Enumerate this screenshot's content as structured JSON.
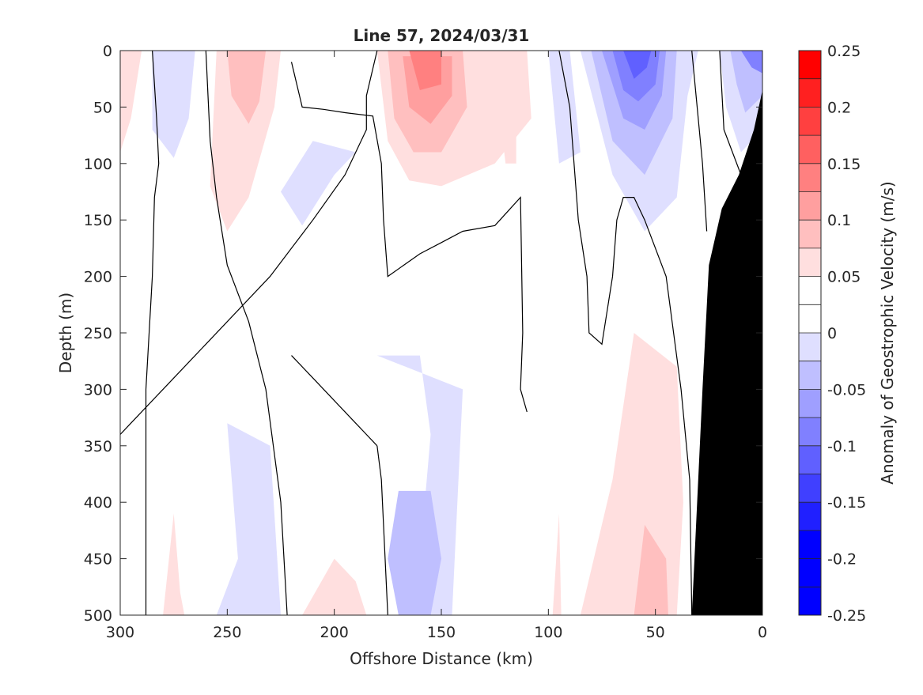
{
  "chart_data": {
    "type": "contourf",
    "title": "Line 57, 2024/03/31",
    "xlabel": "Offshore Distance (km)",
    "ylabel": "Depth (m)",
    "xlim": [
      300,
      0
    ],
    "ylim": [
      0,
      500
    ],
    "x_axis_reversed": true,
    "y_axis_reversed": true,
    "x_ticks": [
      "300",
      "250",
      "200",
      "150",
      "100",
      "50",
      "0"
    ],
    "y_ticks": [
      "0",
      "50",
      "100",
      "150",
      "200",
      "250",
      "300",
      "350",
      "400",
      "450",
      "500"
    ],
    "colorbar": {
      "label": "Anomaly of Geostrophic Velocity (m/s)",
      "range": [
        -0.25,
        0.25
      ],
      "tick_labels": [
        "0.25",
        "0.2",
        "0.15",
        "0.1",
        "0.05",
        "0",
        "-0.05",
        "-0.1",
        "-0.15",
        "-0.2",
        "-0.25"
      ],
      "levels": [
        0.25,
        0.225,
        0.2,
        0.175,
        0.15,
        0.125,
        0.1,
        0.075,
        0.05,
        0.025,
        0.0,
        -0.025,
        -0.05,
        -0.075,
        -0.1,
        -0.125,
        -0.15,
        -0.175,
        -0.2,
        -0.225,
        -0.25
      ],
      "colors": [
        "#ff0000",
        "#ff2020",
        "#ff4040",
        "#ff6060",
        "#ff8080",
        "#ff9f9f",
        "#ffbfbf",
        "#ffdfdf",
        "#ffffff",
        "#ffffff",
        "#dfdfff",
        "#bfbfff",
        "#9f9fff",
        "#8080ff",
        "#6060ff",
        "#4040ff",
        "#2020ff",
        "#0000ff",
        "#0000ff",
        "#0000ff"
      ]
    },
    "grid": false,
    "zero_contour_color": "#000000",
    "bathymetry_color": "#000000",
    "bathymetry_profile": [
      {
        "distance": 0,
        "depth": 35
      },
      {
        "distance": 4,
        "depth": 70
      },
      {
        "distance": 11,
        "depth": 110
      },
      {
        "distance": 19,
        "depth": 140
      },
      {
        "distance": 25,
        "depth": 190
      },
      {
        "distance": 28,
        "depth": 300
      },
      {
        "distance": 31,
        "depth": 420
      },
      {
        "distance": 33,
        "depth": 500
      }
    ],
    "anomaly_regions": [
      {
        "color": "#ffdfdf",
        "points": [
          [
            180,
            0
          ],
          [
            110,
            0
          ],
          [
            108,
            60
          ],
          [
            125,
            100
          ],
          [
            150,
            120
          ],
          [
            165,
            115
          ],
          [
            175,
            80
          ]
        ]
      },
      {
        "color": "#ffbfbf",
        "points": [
          [
            175,
            0
          ],
          [
            140,
            0
          ],
          [
            138,
            50
          ],
          [
            150,
            90
          ],
          [
            163,
            90
          ],
          [
            172,
            60
          ]
        ]
      },
      {
        "color": "#ff9f9f",
        "points": [
          [
            168,
            5
          ],
          [
            145,
            5
          ],
          [
            145,
            40
          ],
          [
            155,
            65
          ],
          [
            165,
            50
          ]
        ]
      },
      {
        "color": "#ff8080",
        "points": [
          [
            165,
            0
          ],
          [
            150,
            0
          ],
          [
            150,
            30
          ],
          [
            160,
            35
          ]
        ]
      },
      {
        "color": "#ffdfdf",
        "points": [
          [
            255,
            0
          ],
          [
            225,
            0
          ],
          [
            228,
            50
          ],
          [
            240,
            130
          ],
          [
            250,
            160
          ],
          [
            258,
            120
          ]
        ]
      },
      {
        "color": "#ffbfbf",
        "points": [
          [
            250,
            0
          ],
          [
            232,
            0
          ],
          [
            235,
            45
          ],
          [
            240,
            65
          ],
          [
            248,
            40
          ]
        ]
      },
      {
        "color": "#ffdfdf",
        "points": [
          [
            300,
            0
          ],
          [
            290,
            0
          ],
          [
            295,
            60
          ],
          [
            300,
            90
          ]
        ]
      },
      {
        "color": "#ffdfdf",
        "points": [
          [
            125,
            20
          ],
          [
            115,
            20
          ],
          [
            115,
            100
          ],
          [
            120,
            100
          ]
        ]
      },
      {
        "color": "#dfdfff",
        "points": [
          [
            285,
            0
          ],
          [
            265,
            0
          ],
          [
            268,
            60
          ],
          [
            275,
            95
          ],
          [
            285,
            70
          ]
        ]
      },
      {
        "color": "#dfdfff",
        "points": [
          [
            210,
            80
          ],
          [
            190,
            90
          ],
          [
            200,
            110
          ],
          [
            215,
            155
          ],
          [
            225,
            125
          ]
        ]
      },
      {
        "color": "#dfdfff",
        "points": [
          [
            100,
            0
          ],
          [
            90,
            0
          ],
          [
            85,
            90
          ],
          [
            95,
            100
          ]
        ]
      },
      {
        "color": "#dfdfff",
        "points": [
          [
            85,
            0
          ],
          [
            30,
            0
          ],
          [
            35,
            40
          ],
          [
            40,
            130
          ],
          [
            55,
            160
          ],
          [
            70,
            110
          ]
        ]
      },
      {
        "color": "#bfbfff",
        "points": [
          [
            80,
            0
          ],
          [
            40,
            0
          ],
          [
            42,
            60
          ],
          [
            55,
            110
          ],
          [
            70,
            80
          ]
        ]
      },
      {
        "color": "#9f9fff",
        "points": [
          [
            75,
            0
          ],
          [
            45,
            0
          ],
          [
            47,
            40
          ],
          [
            55,
            70
          ],
          [
            65,
            60
          ]
        ]
      },
      {
        "color": "#8080ff",
        "points": [
          [
            70,
            0
          ],
          [
            48,
            0
          ],
          [
            50,
            30
          ],
          [
            58,
            45
          ],
          [
            65,
            35
          ]
        ]
      },
      {
        "color": "#6060ff",
        "points": [
          [
            65,
            0
          ],
          [
            52,
            0
          ],
          [
            54,
            15
          ],
          [
            60,
            25
          ]
        ]
      },
      {
        "color": "#dfdfff",
        "points": [
          [
            20,
            0
          ],
          [
            0,
            0
          ],
          [
            0,
            70
          ],
          [
            10,
            90
          ],
          [
            17,
            50
          ]
        ]
      },
      {
        "color": "#bfbfff",
        "points": [
          [
            15,
            0
          ],
          [
            0,
            0
          ],
          [
            0,
            40
          ],
          [
            8,
            55
          ],
          [
            12,
            30
          ]
        ]
      },
      {
        "color": "#8080ff",
        "points": [
          [
            10,
            0
          ],
          [
            0,
            0
          ],
          [
            0,
            20
          ],
          [
            5,
            15
          ]
        ]
      },
      {
        "color": "#dfdfff",
        "points": [
          [
            180,
            270
          ],
          [
            160,
            270
          ],
          [
            155,
            340
          ],
          [
            160,
            450
          ],
          [
            162,
            500
          ],
          [
            145,
            500
          ],
          [
            140,
            300
          ]
        ]
      },
      {
        "color": "#bfbfff",
        "points": [
          [
            170,
            390
          ],
          [
            155,
            390
          ],
          [
            150,
            450
          ],
          [
            155,
            500
          ],
          [
            170,
            500
          ],
          [
            175,
            450
          ]
        ]
      },
      {
        "color": "#dfdfff",
        "points": [
          [
            250,
            330
          ],
          [
            230,
            350
          ],
          [
            225,
            500
          ],
          [
            255,
            500
          ],
          [
            245,
            450
          ]
        ]
      },
      {
        "color": "#ffdfdf",
        "points": [
          [
            60,
            250
          ],
          [
            40,
            280
          ],
          [
            37,
            400
          ],
          [
            40,
            500
          ],
          [
            85,
            500
          ],
          [
            70,
            380
          ]
        ]
      },
      {
        "color": "#ffbfbf",
        "points": [
          [
            55,
            420
          ],
          [
            45,
            450
          ],
          [
            44,
            500
          ],
          [
            60,
            500
          ]
        ]
      },
      {
        "color": "#ffdfdf",
        "points": [
          [
            275,
            410
          ],
          [
            272,
            480
          ],
          [
            270,
            500
          ],
          [
            280,
            500
          ]
        ]
      },
      {
        "color": "#ffdfdf",
        "points": [
          [
            200,
            450
          ],
          [
            190,
            470
          ],
          [
            185,
            500
          ],
          [
            215,
            500
          ]
        ]
      },
      {
        "color": "#ffdfdf",
        "points": [
          [
            95,
            410
          ],
          [
            94,
            500
          ],
          [
            98,
            500
          ]
        ]
      }
    ],
    "zero_contours": [
      [
        [
          180,
          0
        ],
        [
          185,
          40
        ],
        [
          185,
          70
        ],
        [
          195,
          110
        ],
        [
          210,
          150
        ],
        [
          230,
          200
        ],
        [
          260,
          260
        ],
        [
          280,
          300
        ],
        [
          295,
          330
        ],
        [
          300,
          340
        ]
      ],
      [
        [
          285,
          0
        ],
        [
          283,
          60
        ],
        [
          282,
          100
        ],
        [
          284,
          130
        ],
        [
          285,
          200
        ],
        [
          288,
          300
        ],
        [
          288,
          500
        ]
      ],
      [
        [
          260,
          0
        ],
        [
          258,
          80
        ],
        [
          255,
          130
        ],
        [
          250,
          190
        ],
        [
          240,
          240
        ],
        [
          232,
          300
        ],
        [
          225,
          400
        ],
        [
          222,
          500
        ]
      ],
      [
        [
          220,
          10
        ],
        [
          215,
          50
        ],
        [
          205,
          52
        ],
        [
          195,
          55
        ],
        [
          182,
          58
        ],
        [
          178,
          100
        ],
        [
          177,
          150
        ],
        [
          175,
          200
        ],
        [
          160,
          180
        ],
        [
          150,
          170
        ],
        [
          140,
          160
        ],
        [
          125,
          155
        ],
        [
          113,
          130
        ],
        [
          112,
          250
        ],
        [
          113,
          300
        ],
        [
          110,
          320
        ]
      ],
      [
        [
          180,
          350
        ],
        [
          178,
          380
        ],
        [
          175,
          500
        ]
      ],
      [
        [
          220,
          270
        ],
        [
          210,
          290
        ],
        [
          200,
          310
        ],
        [
          190,
          330
        ],
        [
          185,
          340
        ],
        [
          180,
          350
        ]
      ],
      [
        [
          95,
          0
        ],
        [
          90,
          50
        ],
        [
          86,
          150
        ],
        [
          82,
          200
        ],
        [
          81,
          250
        ],
        [
          75,
          260
        ],
        [
          70,
          200
        ],
        [
          68,
          150
        ],
        [
          65,
          130
        ],
        [
          60,
          130
        ],
        [
          55,
          150
        ],
        [
          45,
          200
        ],
        [
          38,
          300
        ],
        [
          34,
          380
        ],
        [
          33,
          500
        ]
      ],
      [
        [
          33,
          0
        ],
        [
          28,
          100
        ],
        [
          26,
          160
        ]
      ],
      [
        [
          20,
          0
        ],
        [
          18,
          70
        ],
        [
          10,
          110
        ],
        [
          5,
          130
        ],
        [
          0,
          140
        ]
      ]
    ]
  }
}
